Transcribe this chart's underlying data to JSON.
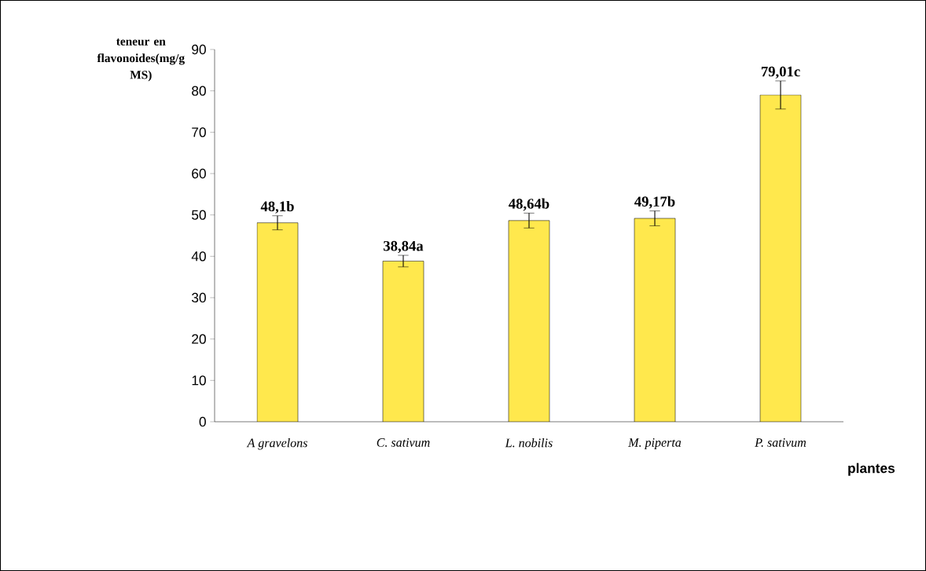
{
  "chart_data": {
    "type": "bar",
    "xlabel": "plantes",
    "ylabel": "teneur en flavonoides(mg/g MS)",
    "categories": [
      "A gravelons",
      "C. sativum",
      "L. nobilis",
      "M. piperta",
      "P. sativum"
    ],
    "values": [
      48.1,
      38.84,
      48.64,
      49.17,
      79.01
    ],
    "errors": [
      1.7,
      1.4,
      1.8,
      1.8,
      3.4
    ],
    "value_labels": [
      "48,1b",
      "38,84a",
      "48,64b",
      "49,17b",
      "79,01c"
    ],
    "color": "#ffe84d",
    "ylim": [
      0,
      90
    ],
    "yticks": [
      0,
      10,
      20,
      30,
      40,
      50,
      60,
      70,
      80,
      90
    ],
    "grid": false
  }
}
